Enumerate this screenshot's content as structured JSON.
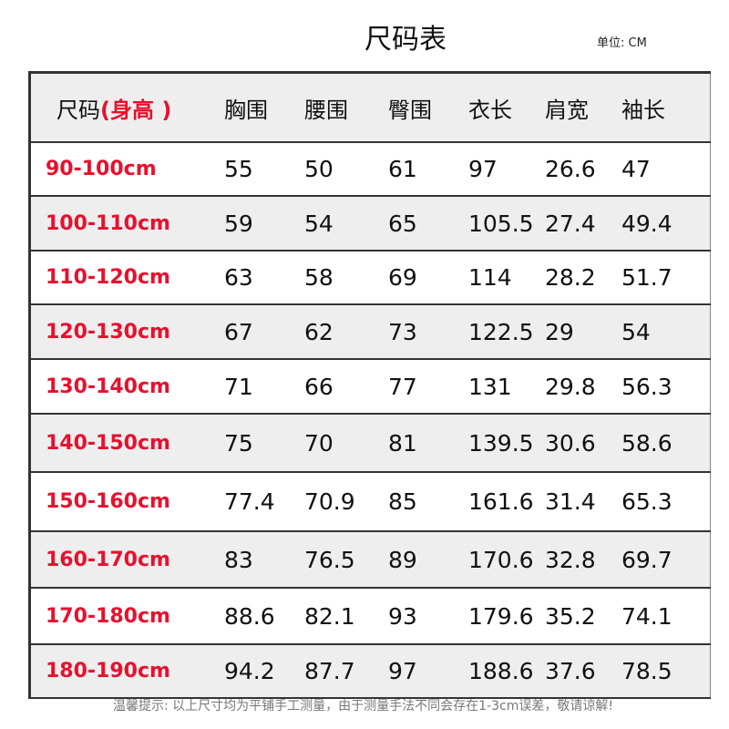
{
  "title": "尺码表",
  "unit": "单位: CM",
  "header": {
    "size_label": "尺码",
    "size_note": "(身高 )",
    "columns": [
      "胸围",
      "腰围",
      "臀围",
      "衣长",
      "肩宽",
      "袖长"
    ]
  },
  "rows": [
    {
      "size": "90-100cm",
      "values": [
        "55",
        "50",
        "61",
        "97",
        "26.6",
        "47"
      ]
    },
    {
      "size": "100-110cm",
      "values": [
        "59",
        "54",
        "65",
        "105.5",
        "27.4",
        "49.4"
      ]
    },
    {
      "size": "110-120cm",
      "values": [
        "63",
        "58",
        "69",
        "114",
        "28.2",
        "51.7"
      ]
    },
    {
      "size": "120-130cm",
      "values": [
        "67",
        "62",
        "73",
        "122.5",
        "29",
        "54"
      ]
    },
    {
      "size": "130-140cm",
      "values": [
        "71",
        "66",
        "77",
        "131",
        "29.8",
        "56.3"
      ]
    },
    {
      "size": "140-150cm",
      "values": [
        "75",
        "70",
        "81",
        "139.5",
        "30.6",
        "58.6"
      ]
    },
    {
      "size": "150-160cm",
      "values": [
        "77.4",
        "70.9",
        "85",
        "161.6",
        "31.4",
        "65.3"
      ]
    },
    {
      "size": "160-170cm",
      "values": [
        "83",
        "76.5",
        "89",
        "170.6",
        "32.8",
        "69.7"
      ]
    },
    {
      "size": "170-180cm",
      "values": [
        "88.6",
        "82.1",
        "93",
        "179.6",
        "35.2",
        "74.1"
      ]
    },
    {
      "size": "180-190cm",
      "values": [
        "94.2",
        "87.7",
        "97",
        "188.6",
        "37.6",
        "78.5"
      ]
    }
  ],
  "footer": "温馨提示:  以上尺寸均为平铺手工测量，由于测量手法不同会存在1-3cm误差，敬请谅解!",
  "colors": {
    "size_text": "#e8102e",
    "alt_row": "#eeeeee"
  }
}
